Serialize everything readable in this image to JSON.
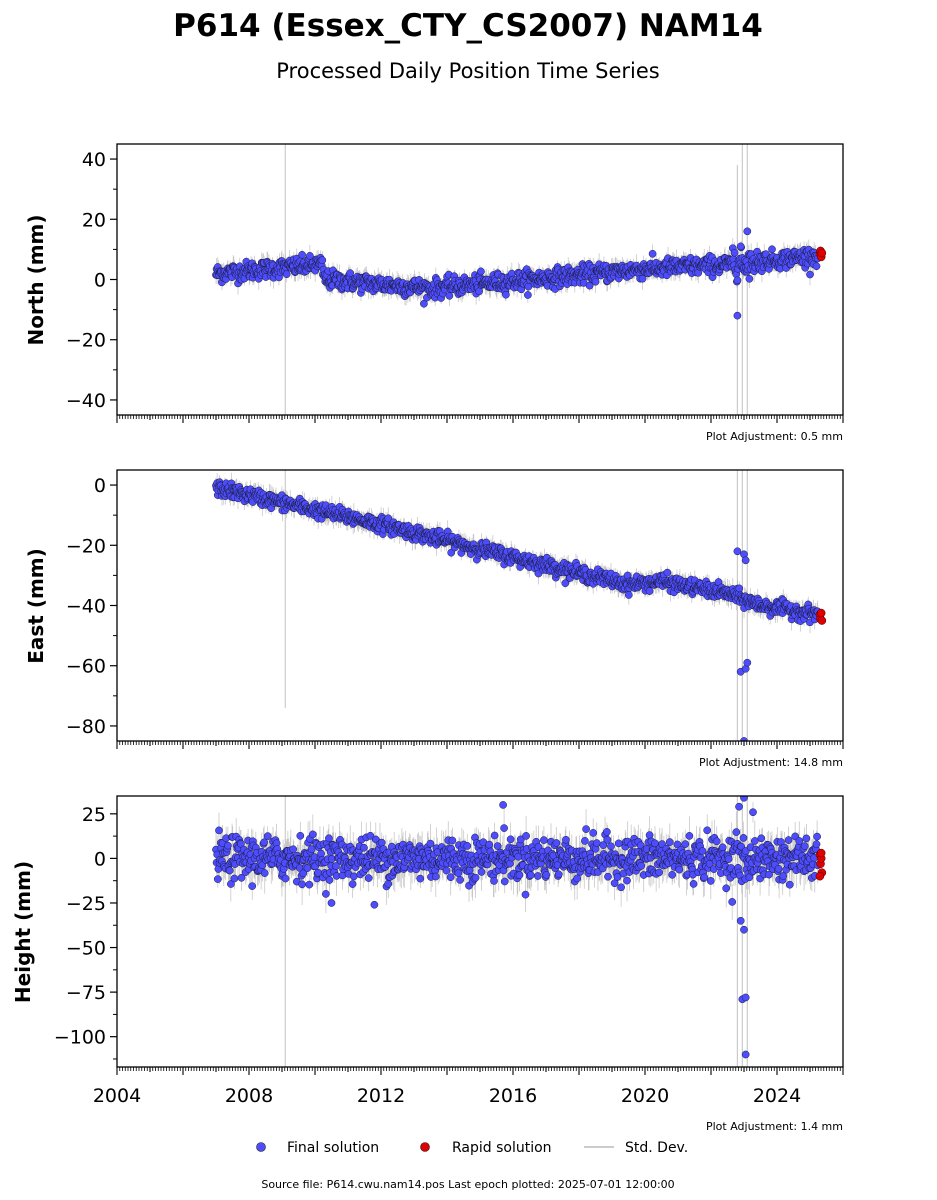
{
  "header": {
    "title": "P614 (Essex_CTY_CS2007) NAM14",
    "subtitle": "Processed Daily Position Time Series"
  },
  "footer": {
    "source": "Source file: P614.cwu.nam14.pos  Last epoch plotted: 2025-07-01 12:00:00"
  },
  "legend": {
    "final": "Final solution",
    "rapid": "Rapid solution",
    "stddev": "Std. Dev."
  },
  "colors": {
    "final": "#4d4dff",
    "rapid": "#e00000",
    "stddev": "#bbbbbb"
  },
  "chart_data": [
    {
      "type": "scatter",
      "component": "north",
      "ylabel": "North (mm)",
      "ylim": [
        -45,
        45
      ],
      "yticks": [
        40,
        20,
        0,
        -20,
        -40
      ],
      "xlim": [
        2004,
        2026
      ],
      "adjustment": "Plot Adjustment: 0.5 mm",
      "trend": [
        [
          2007.0,
          2
        ],
        [
          2010.2,
          5
        ],
        [
          2010.3,
          0
        ],
        [
          2013.5,
          -3
        ],
        [
          2016.5,
          0
        ],
        [
          2020.0,
          3.5
        ],
        [
          2022.5,
          5
        ],
        [
          2025.3,
          8
        ]
      ],
      "scatter_sd": 1.5,
      "error_bar": 2.5,
      "outliers": [
        [
          2022.8,
          -12
        ],
        [
          2023.1,
          16
        ],
        [
          2022.9,
          11
        ]
      ],
      "big_spikes": [
        [
          2009.1,
          -45,
          45
        ],
        [
          2022.8,
          -45,
          38
        ],
        [
          2022.95,
          -45,
          45
        ],
        [
          2023.1,
          -45,
          45
        ]
      ],
      "rapid": [
        [
          2025.3,
          8.5
        ],
        [
          2025.32,
          9.5
        ],
        [
          2025.34,
          7.5
        ],
        [
          2025.36,
          8.8
        ]
      ]
    },
    {
      "type": "scatter",
      "component": "east",
      "ylabel": "East (mm)",
      "ylim": [
        -85,
        5
      ],
      "yticks": [
        0,
        -20,
        -40,
        -60,
        -80
      ],
      "xlim": [
        2004,
        2026
      ],
      "adjustment": "Plot Adjustment: 14.8 mm",
      "trend": [
        [
          2007.0,
          -1
        ],
        [
          2012.0,
          -13
        ],
        [
          2016.0,
          -24
        ],
        [
          2019.5,
          -33
        ],
        [
          2020.5,
          -32
        ],
        [
          2022.5,
          -36
        ],
        [
          2023.5,
          -40
        ],
        [
          2025.3,
          -43
        ]
      ],
      "scatter_sd": 1.2,
      "error_bar": 2.5,
      "outliers": [
        [
          2022.8,
          -22
        ],
        [
          2023.0,
          -23
        ],
        [
          2023.05,
          -25
        ],
        [
          2022.9,
          -62
        ],
        [
          2023.05,
          -61
        ],
        [
          2023.1,
          -59
        ],
        [
          2023.0,
          -85
        ]
      ],
      "big_spikes": [
        [
          2009.1,
          -74,
          5
        ],
        [
          2022.8,
          -85,
          5
        ],
        [
          2022.95,
          -85,
          5
        ],
        [
          2023.1,
          -85,
          5
        ]
      ],
      "rapid": [
        [
          2025.3,
          -43
        ],
        [
          2025.32,
          -44.5
        ],
        [
          2025.34,
          -42.5
        ],
        [
          2025.36,
          -45
        ]
      ]
    },
    {
      "type": "scatter",
      "component": "height",
      "ylabel": "Height (mm)",
      "ylim": [
        -117,
        35
      ],
      "yticks": [
        25,
        0,
        -25,
        -50,
        -75,
        -100
      ],
      "xlim": [
        2004,
        2026
      ],
      "xticks": [
        2004,
        2008,
        2012,
        2016,
        2020,
        2024
      ],
      "adjustment": "Plot Adjustment: 1.4 mm",
      "trend": [
        [
          2007.0,
          0
        ],
        [
          2025.3,
          0
        ]
      ],
      "scatter_sd": 6,
      "error_bar": 8,
      "outliers": [
        [
          2015.7,
          30
        ],
        [
          2022.85,
          29
        ],
        [
          2023.0,
          34
        ],
        [
          2022.9,
          -35
        ],
        [
          2023.0,
          -40
        ],
        [
          2022.95,
          -79
        ],
        [
          2023.05,
          -78
        ],
        [
          2023.05,
          -110
        ],
        [
          2010.5,
          -25
        ],
        [
          2011.8,
          -26
        ]
      ],
      "big_spikes": [
        [
          2009.1,
          -117,
          35
        ],
        [
          2022.8,
          -117,
          35
        ],
        [
          2022.95,
          -117,
          35
        ],
        [
          2023.1,
          -117,
          35
        ]
      ],
      "rapid": [
        [
          2025.3,
          2
        ],
        [
          2025.32,
          -3
        ],
        [
          2025.34,
          0
        ],
        [
          2025.36,
          -8
        ],
        [
          2025.3,
          -10
        ],
        [
          2025.34,
          3
        ]
      ]
    }
  ]
}
